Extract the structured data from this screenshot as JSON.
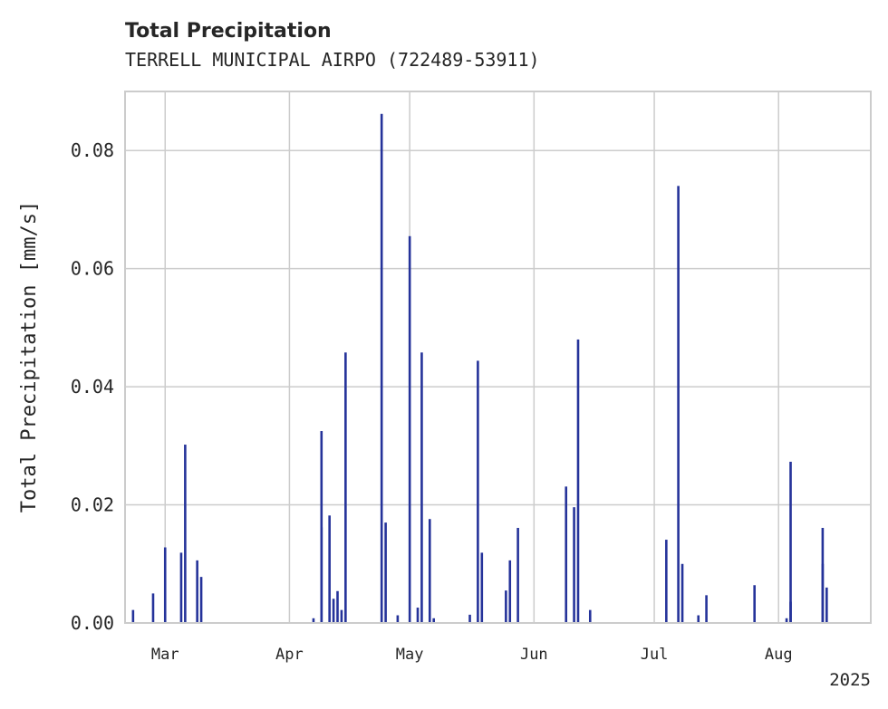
{
  "chart_data": {
    "type": "bar",
    "title": "Total Precipitation",
    "subtitle": "TERRELL MUNICIPAL AIRPO (722489-53911)",
    "ylabel": "Total Precipitation [mm/s]",
    "xlabel": "",
    "x_offset_label": "2025",
    "ylim": [
      0,
      0.09
    ],
    "xlim": [
      "2025-02-19",
      "2025-08-24"
    ],
    "yticks": [
      {
        "value": 0.0,
        "label": "0.00"
      },
      {
        "value": 0.02,
        "label": "0.02"
      },
      {
        "value": 0.04,
        "label": "0.04"
      },
      {
        "value": 0.06,
        "label": "0.06"
      },
      {
        "value": 0.08,
        "label": "0.08"
      }
    ],
    "xticks": [
      {
        "date": "2025-03-01",
        "label": "Mar"
      },
      {
        "date": "2025-04-01",
        "label": "Apr"
      },
      {
        "date": "2025-05-01",
        "label": "May"
      },
      {
        "date": "2025-06-01",
        "label": "Jun"
      },
      {
        "date": "2025-07-01",
        "label": "Jul"
      },
      {
        "date": "2025-08-01",
        "label": "Aug"
      }
    ],
    "grid": true,
    "series": [
      {
        "color": "#25339a",
        "x": [
          "2025-02-21",
          "2025-02-26",
          "2025-03-01",
          "2025-03-05",
          "2025-03-06",
          "2025-03-09",
          "2025-03-10",
          "2025-04-07",
          "2025-04-09",
          "2025-04-09",
          "2025-04-11",
          "2025-04-12",
          "2025-04-13",
          "2025-04-14",
          "2025-04-15",
          "2025-04-24",
          "2025-04-25",
          "2025-04-28",
          "2025-05-01",
          "2025-05-03",
          "2025-05-04",
          "2025-05-06",
          "2025-05-07",
          "2025-05-16",
          "2025-05-18",
          "2025-05-19",
          "2025-05-25",
          "2025-05-26",
          "2025-05-28",
          "2025-06-09",
          "2025-06-11",
          "2025-06-12",
          "2025-06-15",
          "2025-07-04",
          "2025-07-07",
          "2025-07-08",
          "2025-07-12",
          "2025-07-14",
          "2025-07-26",
          "2025-08-03",
          "2025-08-04",
          "2025-08-04",
          "2025-08-12",
          "2025-08-12",
          "2025-08-13"
        ],
        "values": [
          0.0022,
          0.005,
          0.0128,
          0.0119,
          0.0302,
          0.0106,
          0.0078,
          0.0008,
          0.0162,
          0.0325,
          0.0182,
          0.0041,
          0.0054,
          0.0022,
          0.0458,
          0.0862,
          0.017,
          0.0013,
          0.0655,
          0.0026,
          0.0458,
          0.0176,
          0.0008,
          0.0014,
          0.0444,
          0.0119,
          0.0055,
          0.0106,
          0.0161,
          0.0231,
          0.0196,
          0.048,
          0.0022,
          0.0141,
          0.074,
          0.01,
          0.0013,
          0.0047,
          0.0064,
          0.0008,
          0.0036,
          0.0273,
          0.0161,
          0.01,
          0.006
        ]
      }
    ]
  }
}
